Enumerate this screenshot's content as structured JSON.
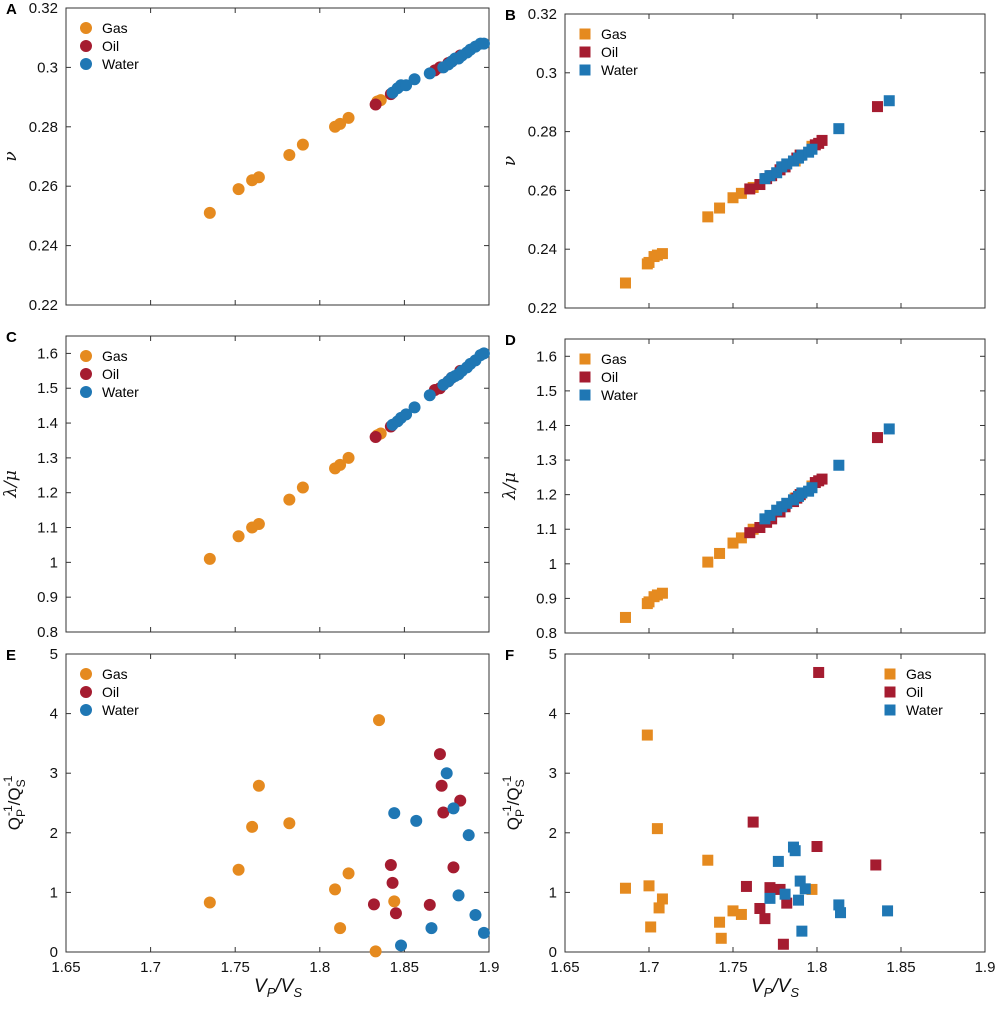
{
  "colors": {
    "Gas": "#E58A1F",
    "Oil": "#A51C30",
    "Water": "#1F77B4"
  },
  "xlabel_main": "V",
  "xlabel_sub_p": "P",
  "xlabel_slash": "/",
  "xlabel_sub_s": "S",
  "chart_data": [
    {
      "panel": "A",
      "type": "scatter",
      "marker": "circle",
      "ylabel": "ν",
      "xlim": [
        1.65,
        1.9
      ],
      "ylim": [
        0.22,
        0.32
      ],
      "xticks": [],
      "yticks": [
        "0.22",
        "0.24",
        "0.26",
        "0.28",
        "0.3",
        "0.32"
      ],
      "legend": [
        "Gas",
        "Oil",
        "Water"
      ],
      "legend_position": "top-left",
      "series": [
        {
          "name": "Gas",
          "x": [
            1.735,
            1.752,
            1.76,
            1.764,
            1.782,
            1.79,
            1.809,
            1.812,
            1.817,
            1.834,
            1.836
          ],
          "y": [
            0.251,
            0.259,
            0.262,
            0.263,
            0.2705,
            0.274,
            0.28,
            0.281,
            0.283,
            0.2885,
            0.289
          ]
        },
        {
          "name": "Oil",
          "x": [
            1.833,
            1.842,
            1.868,
            1.871,
            1.876,
            1.878,
            1.883
          ],
          "y": [
            0.2875,
            0.291,
            0.299,
            0.3,
            0.3015,
            0.302,
            0.304
          ]
        },
        {
          "name": "Water",
          "x": [
            1.843,
            1.846,
            1.848,
            1.851,
            1.856,
            1.865,
            1.873,
            1.876,
            1.878,
            1.88,
            1.882,
            1.884,
            1.887,
            1.889,
            1.892,
            1.895,
            1.897
          ],
          "y": [
            0.2915,
            0.293,
            0.294,
            0.294,
            0.296,
            0.298,
            0.3,
            0.301,
            0.302,
            0.303,
            0.303,
            0.304,
            0.305,
            0.306,
            0.307,
            0.308,
            0.308
          ]
        }
      ]
    },
    {
      "panel": "B",
      "type": "scatter",
      "marker": "square",
      "ylabel": "ν",
      "xlim": [
        1.65,
        1.9
      ],
      "ylim": [
        0.22,
        0.32
      ],
      "xticks": [],
      "yticks": [
        "0.22",
        "0.24",
        "0.26",
        "0.28",
        "0.3",
        "0.32"
      ],
      "legend": [
        "Gas",
        "Oil",
        "Water"
      ],
      "legend_position": "top-left",
      "series": [
        {
          "name": "Gas",
          "x": [
            1.686,
            1.699,
            1.7,
            1.703,
            1.705,
            1.708,
            1.735,
            1.742,
            1.75,
            1.755,
            1.762,
            1.787,
            1.79,
            1.797
          ],
          "y": [
            0.2285,
            0.235,
            0.2355,
            0.2375,
            0.238,
            0.2385,
            0.251,
            0.254,
            0.2575,
            0.259,
            0.261,
            0.27,
            0.272,
            0.275
          ]
        },
        {
          "name": "Oil",
          "x": [
            1.76,
            1.766,
            1.77,
            1.773,
            1.778,
            1.781,
            1.786,
            1.788,
            1.79,
            1.799,
            1.801,
            1.803,
            1.836
          ],
          "y": [
            0.2605,
            0.262,
            0.264,
            0.265,
            0.267,
            0.268,
            0.27,
            0.271,
            0.272,
            0.2755,
            0.276,
            0.277,
            0.2885
          ]
        },
        {
          "name": "Water",
          "x": [
            1.769,
            1.772,
            1.776,
            1.779,
            1.782,
            1.786,
            1.789,
            1.791,
            1.795,
            1.797,
            1.813,
            1.843
          ],
          "y": [
            0.264,
            0.265,
            0.266,
            0.268,
            0.269,
            0.27,
            0.271,
            0.272,
            0.273,
            0.274,
            0.281,
            0.2905
          ]
        }
      ]
    },
    {
      "panel": "C",
      "type": "scatter",
      "marker": "circle",
      "ylabel": "λ/μ",
      "xlim": [
        1.65,
        1.9
      ],
      "ylim": [
        0.8,
        1.65
      ],
      "xticks": [],
      "yticks": [
        "0.8",
        "0.9",
        "1",
        "1.1",
        "1.2",
        "1.3",
        "1.4",
        "1.5",
        "1.6"
      ],
      "legend": [
        "Gas",
        "Oil",
        "Water"
      ],
      "legend_position": "top-left",
      "series": [
        {
          "name": "Gas",
          "x": [
            1.735,
            1.752,
            1.76,
            1.764,
            1.782,
            1.79,
            1.809,
            1.812,
            1.817,
            1.834,
            1.836
          ],
          "y": [
            1.01,
            1.075,
            1.1,
            1.11,
            1.18,
            1.215,
            1.27,
            1.28,
            1.3,
            1.365,
            1.37
          ]
        },
        {
          "name": "Oil",
          "x": [
            1.833,
            1.842,
            1.868,
            1.871,
            1.876,
            1.878,
            1.883
          ],
          "y": [
            1.36,
            1.39,
            1.495,
            1.5,
            1.52,
            1.53,
            1.55
          ]
        },
        {
          "name": "Water",
          "x": [
            1.843,
            1.846,
            1.848,
            1.851,
            1.856,
            1.865,
            1.873,
            1.876,
            1.878,
            1.88,
            1.882,
            1.884,
            1.887,
            1.889,
            1.892,
            1.895,
            1.897
          ],
          "y": [
            1.395,
            1.405,
            1.415,
            1.425,
            1.445,
            1.48,
            1.51,
            1.52,
            1.53,
            1.535,
            1.54,
            1.55,
            1.56,
            1.57,
            1.58,
            1.595,
            1.6
          ]
        }
      ]
    },
    {
      "panel": "D",
      "type": "scatter",
      "marker": "square",
      "ylabel": "λ/μ",
      "xlim": [
        1.65,
        1.9
      ],
      "ylim": [
        0.8,
        1.65
      ],
      "xticks": [],
      "yticks": [
        "0.8",
        "0.9",
        "1",
        "1.1",
        "1.2",
        "1.3",
        "1.4",
        "1.5",
        "1.6"
      ],
      "legend": [
        "Gas",
        "Oil",
        "Water"
      ],
      "legend_position": "top-left",
      "series": [
        {
          "name": "Gas",
          "x": [
            1.686,
            1.699,
            1.7,
            1.703,
            1.705,
            1.708,
            1.735,
            1.742,
            1.75,
            1.755,
            1.762,
            1.787,
            1.79,
            1.797
          ],
          "y": [
            0.845,
            0.885,
            0.89,
            0.905,
            0.91,
            0.915,
            1.005,
            1.03,
            1.06,
            1.075,
            1.1,
            1.19,
            1.2,
            1.225
          ]
        },
        {
          "name": "Oil",
          "x": [
            1.76,
            1.766,
            1.77,
            1.773,
            1.778,
            1.781,
            1.786,
            1.788,
            1.79,
            1.799,
            1.801,
            1.803,
            1.836
          ],
          "y": [
            1.09,
            1.105,
            1.12,
            1.13,
            1.15,
            1.165,
            1.18,
            1.19,
            1.2,
            1.235,
            1.24,
            1.245,
            1.365
          ]
        },
        {
          "name": "Water",
          "x": [
            1.769,
            1.772,
            1.776,
            1.779,
            1.782,
            1.786,
            1.789,
            1.791,
            1.795,
            1.797,
            1.813,
            1.843
          ],
          "y": [
            1.13,
            1.14,
            1.155,
            1.165,
            1.175,
            1.185,
            1.195,
            1.205,
            1.21,
            1.22,
            1.285,
            1.39
          ]
        }
      ]
    },
    {
      "panel": "E",
      "type": "scatter",
      "marker": "circle",
      "ylabel_parts": [
        "Q",
        "P",
        "-1",
        "/Q",
        "S",
        "-1"
      ],
      "xlim": [
        1.65,
        1.9
      ],
      "ylim": [
        0,
        5
      ],
      "xticks": [
        "1.65",
        "1.7",
        "1.75",
        "1.8",
        "1.85",
        "1.9"
      ],
      "yticks": [
        "0",
        "1",
        "2",
        "3",
        "4",
        "5"
      ],
      "legend": [
        "Gas",
        "Oil",
        "Water"
      ],
      "legend_position": "top-left",
      "series": [
        {
          "name": "Gas",
          "x": [
            1.735,
            1.752,
            1.76,
            1.764,
            1.782,
            1.809,
            1.812,
            1.817,
            1.833,
            1.835,
            1.844
          ],
          "y": [
            0.83,
            1.38,
            2.1,
            2.79,
            2.16,
            1.05,
            0.4,
            1.32,
            0.01,
            3.89,
            0.85
          ]
        },
        {
          "name": "Oil",
          "x": [
            1.832,
            1.842,
            1.843,
            1.845,
            1.865,
            1.871,
            1.872,
            1.873,
            1.879,
            1.883
          ],
          "y": [
            0.8,
            1.46,
            1.16,
            0.65,
            0.79,
            3.32,
            2.79,
            2.34,
            1.42,
            2.54
          ]
        },
        {
          "name": "Water",
          "x": [
            1.844,
            1.848,
            1.857,
            1.866,
            1.875,
            1.879,
            1.882,
            1.888,
            1.892,
            1.897
          ],
          "y": [
            2.33,
            0.11,
            2.2,
            0.4,
            3.0,
            2.41,
            0.95,
            1.96,
            0.62,
            0.32
          ]
        }
      ]
    },
    {
      "panel": "F",
      "type": "scatter",
      "marker": "square",
      "ylabel_parts": [
        "Q",
        "P",
        "-1",
        "/Q",
        "S",
        "-1"
      ],
      "xlim": [
        1.65,
        1.9
      ],
      "ylim": [
        0,
        5
      ],
      "xticks": [
        "1.65",
        "1.7",
        "1.75",
        "1.8",
        "1.85",
        "1.9"
      ],
      "yticks": [
        "0",
        "1",
        "2",
        "3",
        "4",
        "5"
      ],
      "legend": [
        "Gas",
        "Oil",
        "Water"
      ],
      "legend_position": "top-right",
      "series": [
        {
          "name": "Gas",
          "x": [
            1.686,
            1.699,
            1.7,
            1.701,
            1.705,
            1.706,
            1.708,
            1.735,
            1.742,
            1.743,
            1.75,
            1.755,
            1.797
          ],
          "y": [
            1.07,
            3.64,
            1.11,
            0.42,
            2.07,
            0.74,
            0.89,
            1.54,
            0.5,
            0.23,
            0.69,
            0.63,
            1.05
          ]
        },
        {
          "name": "Oil",
          "x": [
            1.758,
            1.762,
            1.766,
            1.769,
            1.772,
            1.778,
            1.78,
            1.782,
            1.8,
            1.801,
            1.835
          ],
          "y": [
            1.1,
            2.18,
            0.73,
            0.56,
            1.08,
            1.05,
            0.13,
            0.82,
            1.77,
            4.69,
            1.46
          ]
        },
        {
          "name": "Water",
          "x": [
            1.772,
            1.777,
            1.781,
            1.786,
            1.787,
            1.789,
            1.79,
            1.791,
            1.793,
            1.813,
            1.814,
            1.842
          ],
          "y": [
            0.9,
            1.52,
            0.97,
            1.76,
            1.7,
            0.87,
            1.19,
            0.35,
            1.06,
            0.79,
            0.66,
            0.69
          ]
        }
      ]
    }
  ]
}
